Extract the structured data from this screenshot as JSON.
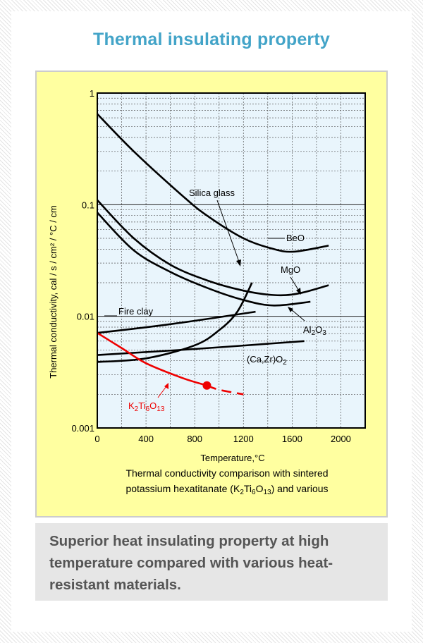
{
  "title": "Thermal insulating property",
  "caption": "Superior heat insulating property at high temperature compared with various heat-resistant materials.",
  "colors": {
    "title": "#43a4c8",
    "plot_bg": "#e9f5fc",
    "frame_bg": "#ffffa0",
    "highlight": "#ee0000",
    "caption_bg": "#e6e6e6",
    "caption_text": "#555555"
  },
  "chart_data": {
    "type": "line",
    "xlabel": "Temperature,°C",
    "ylabel": "Thermal conductivity, cal / s / cm² / °C / cm",
    "x_scale": "linear",
    "y_scale": "log",
    "xlim": [
      0,
      2200
    ],
    "ylim": [
      0.001,
      1
    ],
    "x_ticks": [
      "0",
      "400",
      "800",
      "1200",
      "1600",
      "2000"
    ],
    "y_ticks": [
      "0.001",
      "0.01",
      "0.1",
      "1"
    ],
    "grid": true,
    "figure_caption_lines": [
      "Thermal conductivity comparison with sintered",
      "potassium hexatitanate (K₂Ti₆O₁₃) and various"
    ],
    "series": [
      {
        "name": "BeO",
        "color": "#000000",
        "x": [
          0,
          300,
          700,
          900,
          1200,
          1450,
          1620,
          1900
        ],
        "y": [
          0.65,
          0.3,
          0.12,
          0.08,
          0.05,
          0.04,
          0.038,
          0.043
        ]
      },
      {
        "name": "MgO",
        "color": "#000000",
        "x": [
          0,
          300,
          600,
          900,
          1200,
          1450,
          1650,
          1900
        ],
        "y": [
          0.11,
          0.05,
          0.029,
          0.021,
          0.017,
          0.0155,
          0.016,
          0.019
        ]
      },
      {
        "name": "Al₂O₃",
        "color": "#000000",
        "x": [
          0,
          300,
          600,
          900,
          1200,
          1450,
          1750
        ],
        "y": [
          0.085,
          0.039,
          0.025,
          0.018,
          0.014,
          0.0125,
          0.0135
        ]
      },
      {
        "name": "Silica glass",
        "color": "#000000",
        "x": [
          0,
          400,
          800,
          1000,
          1150,
          1270
        ],
        "y": [
          0.0039,
          0.0042,
          0.0055,
          0.0075,
          0.011,
          0.02
        ]
      },
      {
        "name": "Fire clay",
        "color": "#000000",
        "x": [
          0,
          600,
          1300
        ],
        "y": [
          0.0071,
          0.0085,
          0.011
        ]
      },
      {
        "name": "(Ca,Zr)O₂",
        "color": "#000000",
        "x": [
          0,
          800,
          1700
        ],
        "y": [
          0.0045,
          0.0051,
          0.006
        ]
      },
      {
        "name": "K₂Ti₆O₁₃",
        "color": "#ee0000",
        "x": [
          0,
          200,
          400,
          700,
          900,
          1000,
          1200
        ],
        "y": [
          0.0071,
          0.0052,
          0.0038,
          0.0028,
          0.0024,
          0.0022,
          0.002
        ],
        "dashed_from_x": 900,
        "marker_x": 900,
        "marker_y": 0.0024
      }
    ]
  }
}
